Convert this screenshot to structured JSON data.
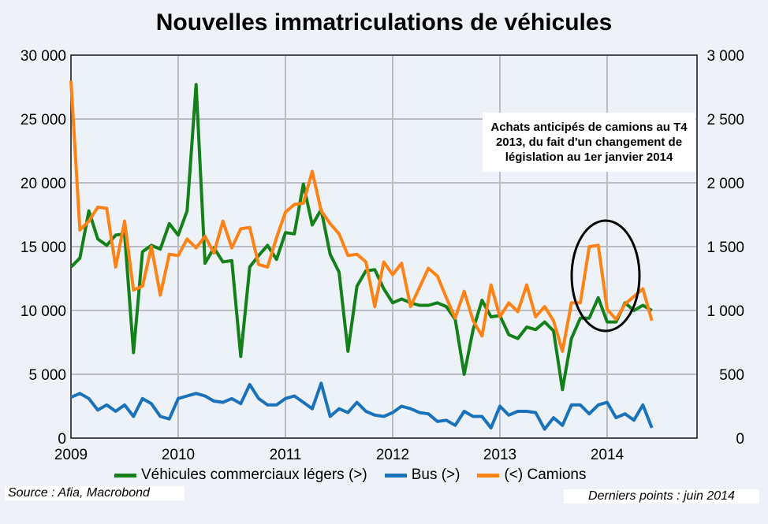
{
  "chart_data": {
    "type": "line",
    "title": "Nouvelles immatriculations de véhicules",
    "x_start": "2009-01",
    "frequency": "monthly",
    "x_ticks": [
      "2009",
      "2010",
      "2011",
      "2012",
      "2013",
      "2014"
    ],
    "y_left": {
      "ylim": [
        0,
        30000
      ],
      "ticks": [
        "0",
        "5 000",
        "10 000",
        "15 000",
        "20 000",
        "25 000",
        "30 000"
      ]
    },
    "y_right": {
      "ylim": [
        0,
        3000
      ],
      "ticks": [
        "0",
        "500",
        "1 000",
        "1 500",
        "2 000",
        "2 500",
        "3 000"
      ]
    },
    "grid": true,
    "series": [
      {
        "name": "Véhicules commerciaux légers (>)",
        "axis": "left",
        "color": "#14801a",
        "values": [
          13400,
          14100,
          17800,
          15600,
          15100,
          15900,
          16000,
          6700,
          14600,
          15100,
          14800,
          16800,
          15900,
          17800,
          27700,
          13700,
          14900,
          13800,
          13900,
          6400,
          13400,
          14300,
          15100,
          14000,
          16100,
          16000,
          19900,
          16700,
          17900,
          14400,
          13000,
          6800,
          11900,
          13100,
          13200,
          11700,
          10600,
          10900,
          10600,
          10400,
          10400,
          10600,
          10300,
          9300,
          5000,
          8500,
          10800,
          9500,
          9600,
          8100,
          7800,
          8700,
          8500,
          9100,
          8400,
          3800,
          7800,
          9400,
          9400,
          11000,
          9100,
          9100,
          10600,
          10000,
          10400,
          10000
        ]
      },
      {
        "name": "Bus (>)",
        "axis": "left",
        "color": "#1a72bb",
        "values": [
          3200,
          3500,
          3100,
          2200,
          2600,
          2100,
          2600,
          1700,
          3100,
          2700,
          1700,
          1500,
          3100,
          3300,
          3500,
          3300,
          2900,
          2800,
          3100,
          2700,
          4200,
          3100,
          2600,
          2600,
          3100,
          3300,
          2800,
          2300,
          4300,
          1700,
          2300,
          2000,
          2800,
          2100,
          1800,
          1700,
          2000,
          2500,
          2300,
          2000,
          1900,
          1300,
          1400,
          1000,
          2100,
          1700,
          1700,
          800,
          2500,
          1800,
          2100,
          2100,
          2000,
          700,
          1600,
          1000,
          2600,
          2600,
          1900,
          2600,
          2800,
          1600,
          1900,
          1400,
          2600,
          800
        ]
      },
      {
        "name": "(<) Camions",
        "axis": "right",
        "color": "#ff8214",
        "values": [
          2800,
          1630,
          1700,
          1810,
          1800,
          1340,
          1700,
          1160,
          1190,
          1500,
          1120,
          1440,
          1430,
          1560,
          1490,
          1580,
          1450,
          1700,
          1490,
          1640,
          1650,
          1360,
          1340,
          1570,
          1770,
          1830,
          1840,
          2090,
          1780,
          1680,
          1600,
          1430,
          1440,
          1380,
          1030,
          1380,
          1280,
          1370,
          1030,
          1180,
          1330,
          1270,
          1100,
          940,
          1150,
          920,
          800,
          1200,
          950,
          1060,
          990,
          1200,
          950,
          1030,
          920,
          680,
          1060,
          1060,
          1500,
          1510,
          1010,
          930,
          1050,
          1110,
          1170,
          920
        ]
      }
    ],
    "legend": "bottom",
    "annotation": "Achats anticipés de camions au T4 2013, du fait d'un changement de législation au 1er janvier 2014"
  },
  "footer": {
    "source": "Source : Afia, Macrobond",
    "last": "Derniers points : juin 2014"
  }
}
